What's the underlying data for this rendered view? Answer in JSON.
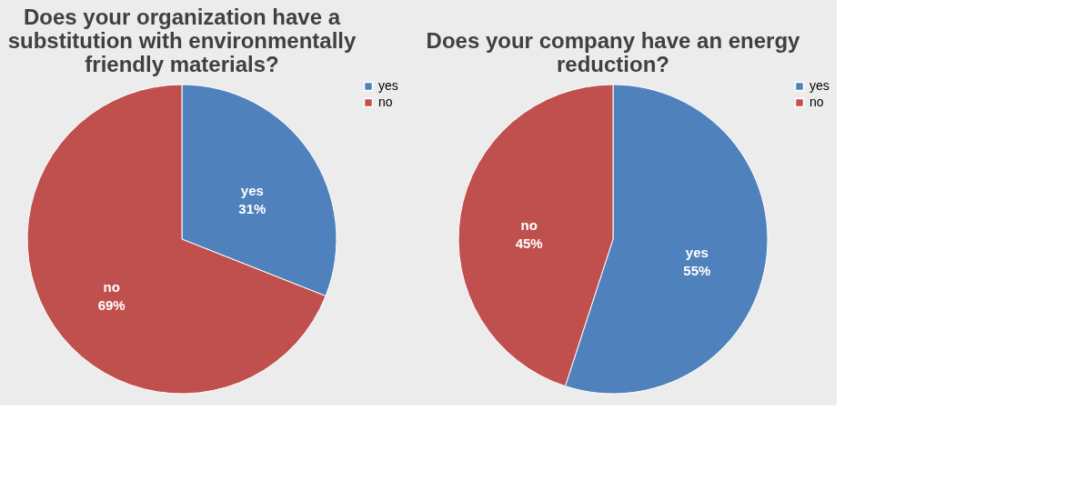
{
  "chart_data": [
    {
      "type": "pie",
      "title": "Does your organization have a substitution with environmentally friendly materials?",
      "categories": [
        "yes",
        "no"
      ],
      "values": [
        31,
        69
      ],
      "colors": [
        "#4f81bd",
        "#c0504d"
      ],
      "value_labels": [
        "31%",
        "69%"
      ],
      "legend": "right"
    },
    {
      "type": "pie",
      "title": "Does your company have an energy reduction?",
      "categories": [
        "yes",
        "no"
      ],
      "values": [
        55,
        45
      ],
      "colors": [
        "#4f81bd",
        "#c0504d"
      ],
      "value_labels": [
        "55%",
        "45%"
      ],
      "legend": "right"
    }
  ]
}
